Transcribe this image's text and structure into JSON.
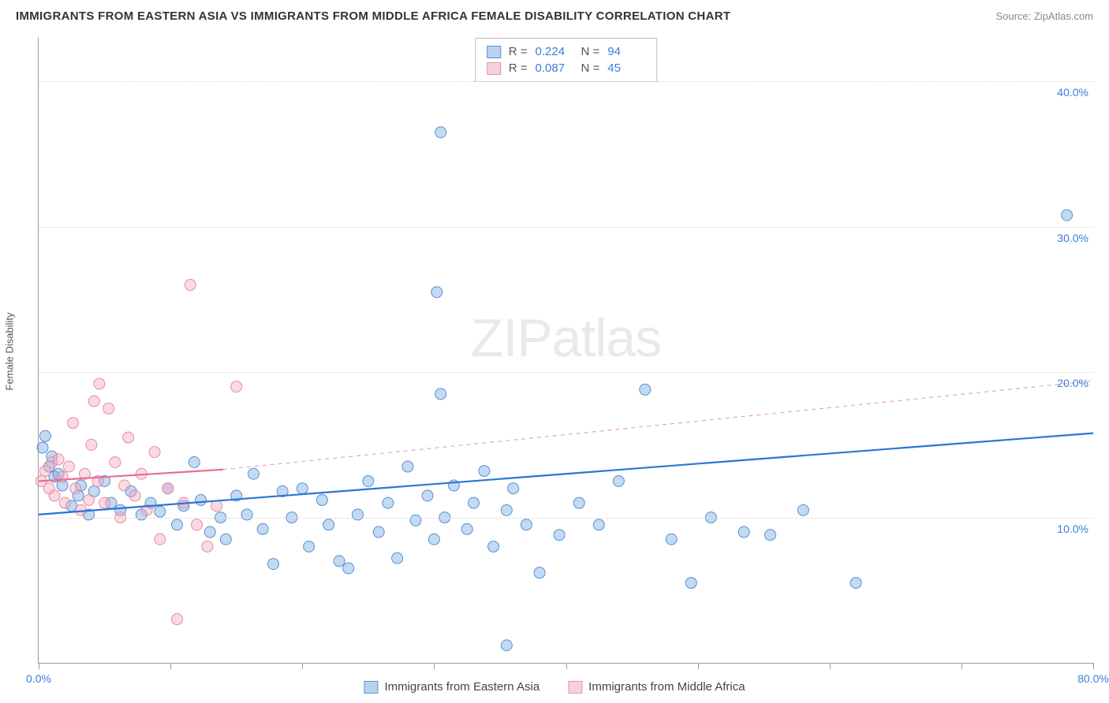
{
  "title": "IMMIGRANTS FROM EASTERN ASIA VS IMMIGRANTS FROM MIDDLE AFRICA FEMALE DISABILITY CORRELATION CHART",
  "source": "Source: ZipAtlas.com",
  "watermark_zip": "ZIP",
  "watermark_atlas": "atlas",
  "y_axis_label": "Female Disability",
  "chart": {
    "type": "scatter",
    "xlim": [
      0,
      80
    ],
    "ylim": [
      0,
      43
    ],
    "x_ticks": [
      0,
      10,
      20,
      30,
      40,
      50,
      60,
      70,
      80
    ],
    "x_tick_labels": {
      "0": "0.0%",
      "80": "80.0%"
    },
    "y_gridlines": [
      10,
      20,
      30,
      40
    ],
    "y_tick_labels": {
      "10": "10.0%",
      "20": "20.0%",
      "30": "30.0%",
      "40": "40.0%"
    },
    "background_color": "#ffffff",
    "grid_color": "#dddddd",
    "axis_line_color": "#999999",
    "tick_label_color": "#3b7dd8",
    "tick_label_fontsize": 14,
    "marker_radius": 7,
    "marker_opacity": 0.42,
    "series": [
      {
        "name": "Immigrants from Eastern Asia",
        "color_fill": "#6fa7e3",
        "color_stroke": "#5a90cf",
        "R": "0.224",
        "N": "94",
        "trend": {
          "x1": 0,
          "y1": 10.2,
          "x2": 80,
          "y2": 15.8,
          "color": "#2d74d6",
          "width": 2.2,
          "dash": "none"
        },
        "points": [
          [
            0.3,
            14.8
          ],
          [
            0.5,
            15.6
          ],
          [
            0.8,
            13.5
          ],
          [
            1.0,
            14.2
          ],
          [
            1.2,
            12.8
          ],
          [
            1.5,
            13.0
          ],
          [
            1.8,
            12.2
          ],
          [
            2.5,
            10.8
          ],
          [
            3.0,
            11.5
          ],
          [
            3.2,
            12.2
          ],
          [
            3.8,
            10.2
          ],
          [
            4.2,
            11.8
          ],
          [
            5.0,
            12.5
          ],
          [
            5.5,
            11.0
          ],
          [
            6.2,
            10.5
          ],
          [
            7.0,
            11.8
          ],
          [
            7.8,
            10.2
          ],
          [
            8.5,
            11.0
          ],
          [
            9.2,
            10.4
          ],
          [
            9.8,
            12.0
          ],
          [
            10.5,
            9.5
          ],
          [
            11.0,
            10.8
          ],
          [
            11.8,
            13.8
          ],
          [
            12.3,
            11.2
          ],
          [
            13.0,
            9.0
          ],
          [
            13.8,
            10.0
          ],
          [
            14.2,
            8.5
          ],
          [
            15.0,
            11.5
          ],
          [
            15.8,
            10.2
          ],
          [
            16.3,
            13.0
          ],
          [
            17.0,
            9.2
          ],
          [
            17.8,
            6.8
          ],
          [
            18.5,
            11.8
          ],
          [
            19.2,
            10.0
          ],
          [
            20.0,
            12.0
          ],
          [
            20.5,
            8.0
          ],
          [
            21.5,
            11.2
          ],
          [
            22.0,
            9.5
          ],
          [
            22.8,
            7.0
          ],
          [
            23.5,
            6.5
          ],
          [
            24.2,
            10.2
          ],
          [
            25.0,
            12.5
          ],
          [
            25.8,
            9.0
          ],
          [
            26.5,
            11.0
          ],
          [
            27.2,
            7.2
          ],
          [
            28.0,
            13.5
          ],
          [
            28.6,
            9.8
          ],
          [
            29.5,
            11.5
          ],
          [
            30.0,
            8.5
          ],
          [
            30.5,
            18.5
          ],
          [
            30.8,
            10.0
          ],
          [
            31.5,
            12.2
          ],
          [
            32.5,
            9.2
          ],
          [
            33.0,
            11.0
          ],
          [
            33.8,
            13.2
          ],
          [
            34.5,
            8.0
          ],
          [
            35.5,
            10.5
          ],
          [
            36.0,
            12.0
          ],
          [
            37.0,
            9.5
          ],
          [
            38.0,
            6.2
          ],
          [
            30.2,
            25.5
          ],
          [
            30.5,
            36.5
          ],
          [
            39.5,
            8.8
          ],
          [
            41.0,
            11.0
          ],
          [
            42.5,
            9.5
          ],
          [
            44.0,
            12.5
          ],
          [
            46.0,
            18.8
          ],
          [
            48.0,
            8.5
          ],
          [
            49.5,
            5.5
          ],
          [
            51.0,
            10.0
          ],
          [
            53.5,
            9.0
          ],
          [
            55.5,
            8.8
          ],
          [
            35.5,
            1.2
          ],
          [
            58.0,
            10.5
          ],
          [
            62.0,
            5.5
          ],
          [
            78.0,
            30.8
          ]
        ]
      },
      {
        "name": "Immigrants from Middle Africa",
        "color_fill": "#f3a8ba",
        "color_stroke": "#e58ba2",
        "R": "0.087",
        "N": "45",
        "trend_solid": {
          "x1": 0,
          "y1": 12.5,
          "x2": 14,
          "y2": 13.3,
          "color": "#e76f8f",
          "width": 2.2
        },
        "trend_dash": {
          "x1": 14,
          "y1": 13.3,
          "x2": 80,
          "y2": 19.4,
          "color": "#e9a3b3",
          "width": 1.2,
          "dash": "5,5"
        },
        "points": [
          [
            0.2,
            12.5
          ],
          [
            0.5,
            13.2
          ],
          [
            0.8,
            12.0
          ],
          [
            1.0,
            13.8
          ],
          [
            1.2,
            11.5
          ],
          [
            1.5,
            14.0
          ],
          [
            1.8,
            12.8
          ],
          [
            2.0,
            11.0
          ],
          [
            2.3,
            13.5
          ],
          [
            2.6,
            16.5
          ],
          [
            2.8,
            12.0
          ],
          [
            3.2,
            10.5
          ],
          [
            3.5,
            13.0
          ],
          [
            3.8,
            11.2
          ],
          [
            4.0,
            15.0
          ],
          [
            4.2,
            18.0
          ],
          [
            4.5,
            12.5
          ],
          [
            5.0,
            11.0
          ],
          [
            5.3,
            17.5
          ],
          [
            4.6,
            19.2
          ],
          [
            5.8,
            13.8
          ],
          [
            6.2,
            10.0
          ],
          [
            6.5,
            12.2
          ],
          [
            6.8,
            15.5
          ],
          [
            7.3,
            11.5
          ],
          [
            7.8,
            13.0
          ],
          [
            8.2,
            10.5
          ],
          [
            8.8,
            14.5
          ],
          [
            9.2,
            8.5
          ],
          [
            9.8,
            12.0
          ],
          [
            10.5,
            3.0
          ],
          [
            11.0,
            11.0
          ],
          [
            11.5,
            26.0
          ],
          [
            12.0,
            9.5
          ],
          [
            12.8,
            8.0
          ],
          [
            13.5,
            10.8
          ],
          [
            15.0,
            19.0
          ]
        ]
      }
    ]
  },
  "stats_legend": {
    "R_label": "R =",
    "N_label": "N ="
  },
  "bottom_legend": {
    "series1": "Immigrants from Eastern Asia",
    "series2": "Immigrants from Middle Africa"
  }
}
